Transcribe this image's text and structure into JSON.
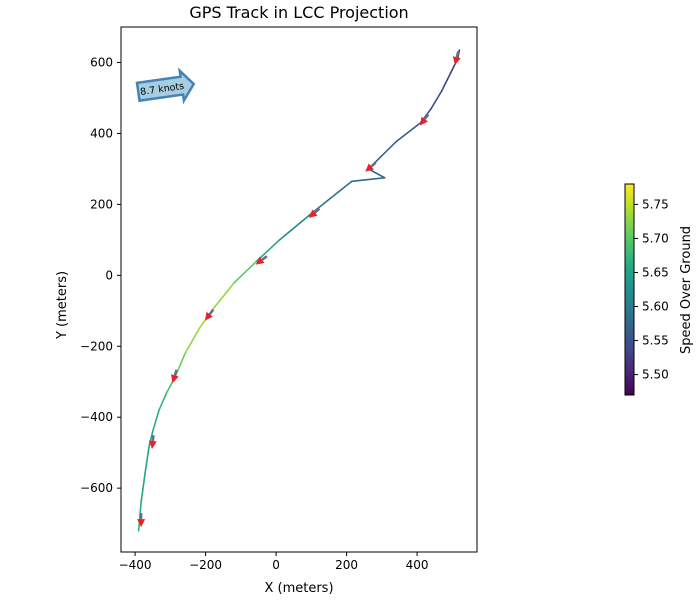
{
  "chart_data": {
    "type": "line",
    "title": "GPS Track in LCC Projection",
    "xlabel": "X (meters)",
    "ylabel": "Y (meters)",
    "xlim": [
      -440,
      570
    ],
    "ylim": [
      -780,
      700
    ],
    "xticks": [
      -400,
      -200,
      0,
      200,
      400
    ],
    "yticks": [
      -600,
      -400,
      -200,
      0,
      200,
      400,
      600
    ],
    "xtick_labels": [
      "−400",
      "−200",
      "0",
      "200",
      "400"
    ],
    "ytick_labels": [
      "−600",
      "−400",
      "−200",
      "0",
      "200",
      "400",
      "600"
    ],
    "grid": false,
    "track": {
      "x": [
        -390,
        -383,
        -372,
        -360,
        -350,
        -332,
        -310,
        -288,
        -258,
        -218,
        -175,
        -118,
        -55,
        10,
        95,
        145,
        215,
        308,
        262,
        342,
        410,
        440,
        470,
        495,
        515,
        520
      ],
      "y": [
        -720,
        -640,
        -560,
        -480,
        -440,
        -380,
        -330,
        -290,
        -220,
        -150,
        -90,
        -20,
        40,
        100,
        170,
        210,
        265,
        275,
        300,
        378,
        430,
        470,
        520,
        570,
        610,
        635
      ],
      "speed": [
        5.67,
        5.66,
        5.65,
        5.65,
        5.66,
        5.67,
        5.68,
        5.7,
        5.72,
        5.74,
        5.74,
        5.72,
        5.68,
        5.64,
        5.6,
        5.59,
        5.58,
        5.57,
        5.57,
        5.56,
        5.56,
        5.55,
        5.54,
        5.53,
        5.52,
        5.51
      ]
    },
    "heading_arrows": [
      {
        "x": -383,
        "y": -690,
        "dx": 0,
        "dy": -1
      },
      {
        "x": -350,
        "y": -470,
        "dx": -0.1,
        "dy": -1
      },
      {
        "x": -288,
        "y": -285,
        "dx": -0.3,
        "dy": -1
      },
      {
        "x": -190,
        "y": -112,
        "dx": -0.6,
        "dy": -0.8
      },
      {
        "x": -42,
        "y": 42,
        "dx": -0.8,
        "dy": -0.6
      },
      {
        "x": 108,
        "y": 175,
        "dx": -0.75,
        "dy": -0.65
      },
      {
        "x": 268,
        "y": 305,
        "dx": -0.75,
        "dy": -0.65
      },
      {
        "x": 420,
        "y": 438,
        "dx": -0.6,
        "dy": -0.8
      },
      {
        "x": 512,
        "y": 612,
        "dx": -0.25,
        "dy": -1
      }
    ],
    "colorbar": {
      "label": "Speed Over Ground",
      "range": [
        5.47,
        5.78
      ],
      "ticks": [
        5.5,
        5.55,
        5.6,
        5.65,
        5.7,
        5.75
      ],
      "tick_labels": [
        "5.50",
        "5.55",
        "5.60",
        "5.65",
        "5.70",
        "5.75"
      ],
      "colormap": "viridis"
    },
    "annotation": {
      "text": "8.7 knots",
      "style": "right-pointing arrow box",
      "fill": "#a6cee3",
      "edge": "#4682b4",
      "rotation_deg": -8
    },
    "colors": {
      "heading_arrow": "#e8202a",
      "arrow_shaft": "#6b6b8a"
    }
  }
}
